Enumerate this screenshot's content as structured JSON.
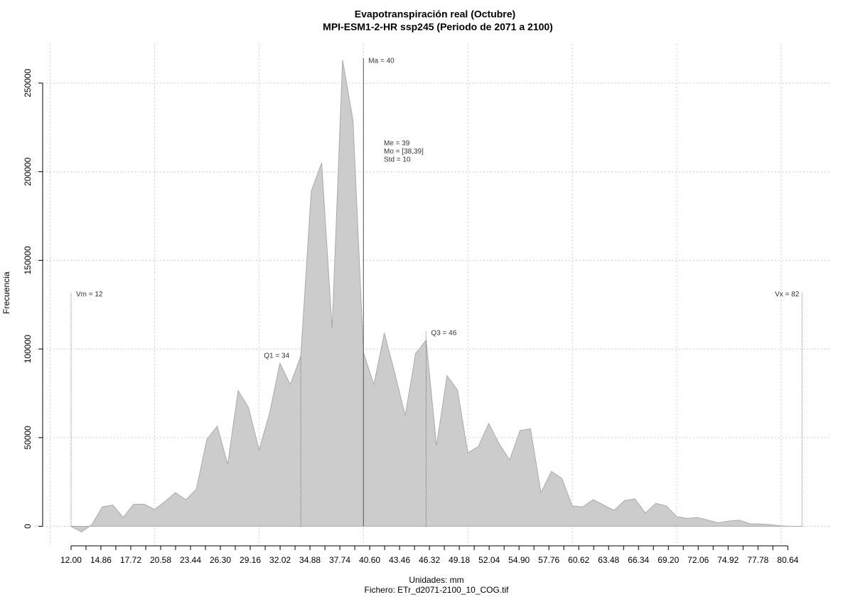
{
  "chart_data": {
    "type": "area",
    "title": "Evapotranspiración real (Octubre)",
    "subtitle": "MPI-ESM1-2-HR ssp245 (Periodo de 2071 a 2100)",
    "x_label": "Unidades: mm",
    "caption": "Fichero: ETr_d2071-2100_10_COG.tif",
    "y_label": "Frecuencia",
    "x": [
      12,
      13,
      14,
      15,
      16,
      17,
      18,
      19,
      20,
      21,
      22,
      23,
      24,
      25,
      26,
      27,
      28,
      29,
      30,
      31,
      32,
      33,
      34,
      35,
      36,
      37,
      38,
      39,
      40,
      41,
      42,
      43,
      44,
      45,
      46,
      47,
      48,
      49,
      50,
      51,
      52,
      53,
      54,
      55,
      56,
      57,
      58,
      59,
      60,
      61,
      62,
      63,
      64,
      65,
      66,
      67,
      68,
      69,
      70,
      71,
      72,
      73,
      74,
      75,
      76,
      77,
      78,
      79,
      80,
      81,
      82
    ],
    "values": [
      0,
      -3200,
      1000,
      11000,
      12000,
      5000,
      12500,
      12500,
      9500,
      14000,
      19000,
      15000,
      21000,
      49000,
      56500,
      35000,
      76500,
      67000,
      43000,
      63500,
      92000,
      80000,
      96000,
      189000,
      205000,
      111500,
      263000,
      229000,
      98000,
      80000,
      109000,
      86500,
      62500,
      97500,
      105000,
      45500,
      85000,
      77000,
      41500,
      45000,
      58000,
      46500,
      37500,
      54000,
      55000,
      19000,
      31000,
      27000,
      11500,
      11000,
      15000,
      12000,
      9000,
      14500,
      15500,
      7500,
      13000,
      11500,
      5500,
      4500,
      5000,
      3500,
      2000,
      3000,
      3500,
      1500,
      1300,
      1000,
      200,
      0,
      0
    ],
    "color": "#cccccc",
    "xlim": [
      9.28,
      84.84
    ],
    "ylim": [
      -11000,
      272000
    ],
    "xticks": [
      {
        "value": 12,
        "label": "12.00"
      },
      {
        "value": 14.86,
        "label": "14.86"
      },
      {
        "value": 17.72,
        "label": "17.72"
      },
      {
        "value": 20.58,
        "label": "20.58"
      },
      {
        "value": 23.44,
        "label": "23.44"
      },
      {
        "value": 26.3,
        "label": "26.30"
      },
      {
        "value": 29.16,
        "label": "29.16"
      },
      {
        "value": 32.02,
        "label": "32.02"
      },
      {
        "value": 34.88,
        "label": "34.88"
      },
      {
        "value": 37.74,
        "label": "37.74"
      },
      {
        "value": 40.6,
        "label": "40.60"
      },
      {
        "value": 43.46,
        "label": "43.46"
      },
      {
        "value": 46.32,
        "label": "46.32"
      },
      {
        "value": 49.18,
        "label": "49.18"
      },
      {
        "value": 52.04,
        "label": "52.04"
      },
      {
        "value": 54.9,
        "label": "54.90"
      },
      {
        "value": 57.76,
        "label": "57.76"
      },
      {
        "value": 60.62,
        "label": "60.62"
      },
      {
        "value": 63.48,
        "label": "63.48"
      },
      {
        "value": 66.34,
        "label": "66.34"
      },
      {
        "value": 69.2,
        "label": "69.20"
      },
      {
        "value": 72.06,
        "label": "72.06"
      },
      {
        "value": 74.92,
        "label": "74.92"
      },
      {
        "value": 77.78,
        "label": "77.78"
      },
      {
        "value": 80.64,
        "label": "80.64"
      }
    ],
    "yticks": [
      0,
      50000,
      100000,
      150000,
      200000,
      250000
    ],
    "xgrid": [
      10,
      20,
      30,
      40,
      50,
      60,
      70,
      80
    ],
    "grid": true,
    "markers": [
      {
        "label": "Vm = 12",
        "x": 12
      },
      {
        "label": "Q1 = 34",
        "x": 34
      },
      {
        "label": "Ma = 40",
        "x": 40
      },
      {
        "label": "Q3 = 46",
        "x": 46
      },
      {
        "label": "Vx = 82",
        "x": 82
      }
    ],
    "stats": [
      "Me = 39",
      "Mo = [38,39]",
      "Std = 10"
    ]
  }
}
